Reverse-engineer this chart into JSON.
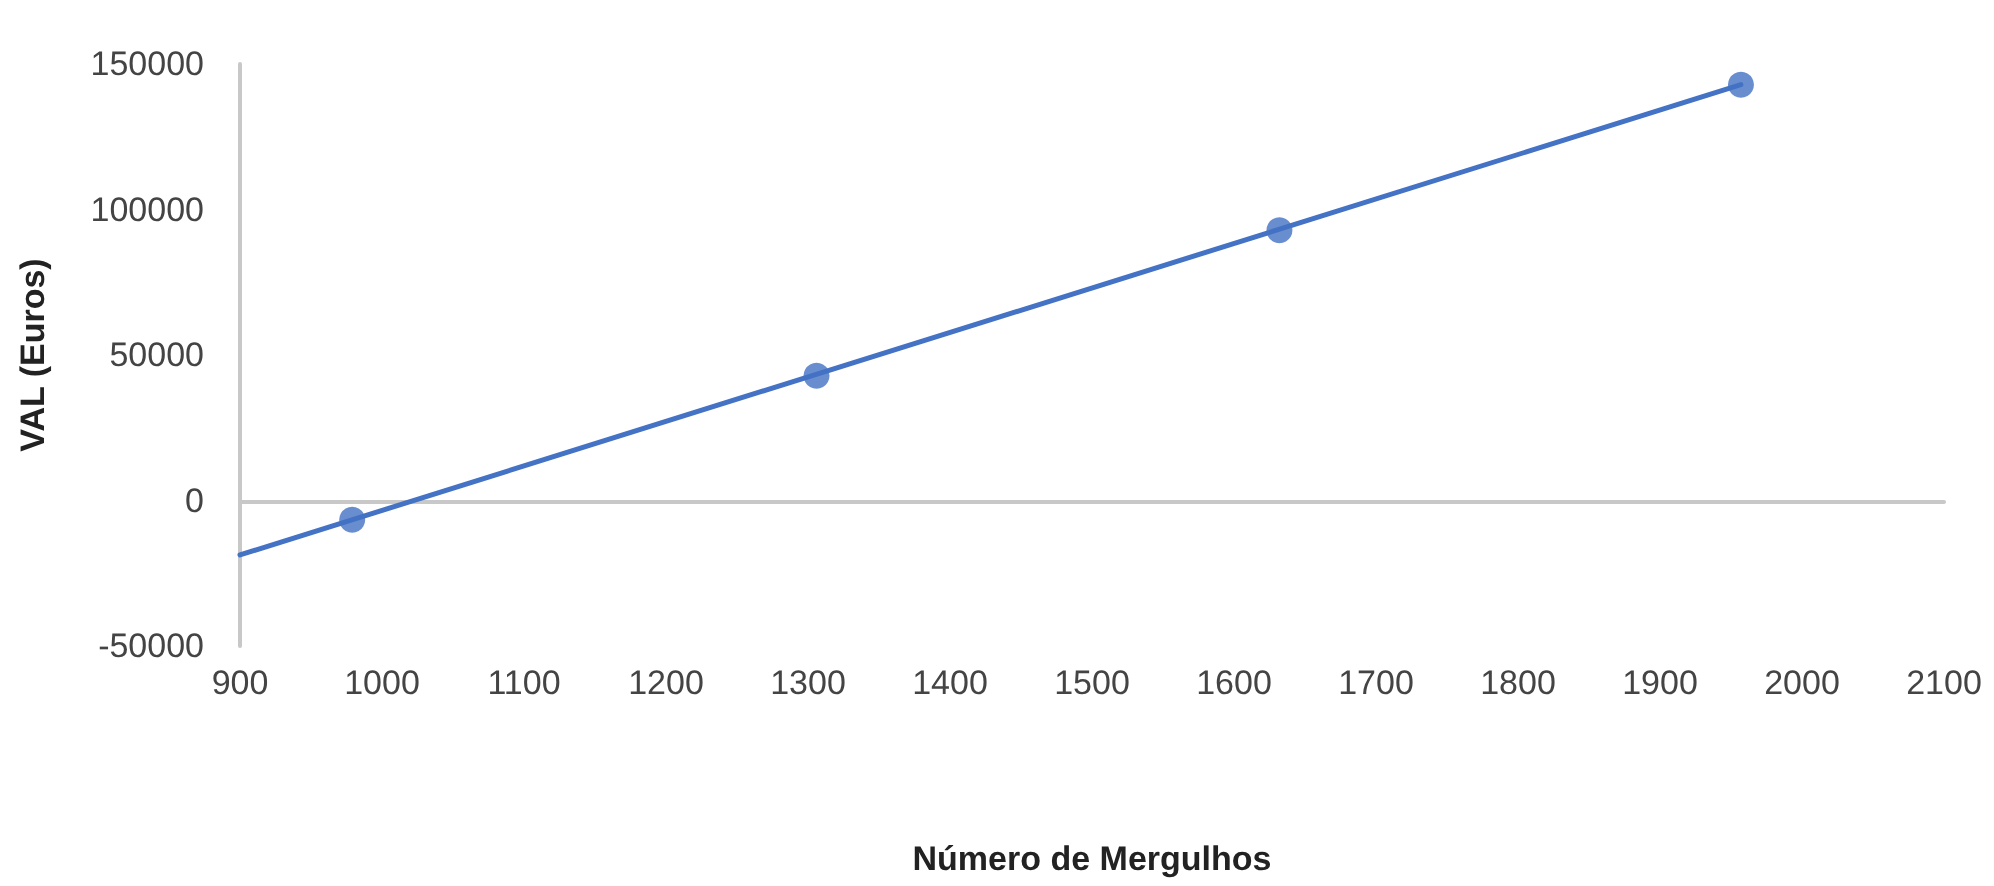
{
  "chart_data": {
    "type": "scatter",
    "xlabel": "Número de Mergulhos",
    "ylabel": "VAL (Euros)",
    "series": [
      {
        "color": "#4472c4",
        "x": [
          979,
          1306,
          1632,
          1957
        ],
        "values": [
          -6600,
          42900,
          92900,
          142900
        ],
        "marker": "circle"
      },
      {
        "type": "line",
        "color": "#4472c4",
        "x": [
          900,
          1957
        ],
        "values": [
          -18700,
          142900
        ],
        "marker": "none",
        "line_style": "solid"
      }
    ],
    "xlim": [
      900,
      2100
    ],
    "xticks": [
      900,
      1000,
      1100,
      1200,
      1300,
      1400,
      1500,
      1600,
      1700,
      1800,
      1900,
      2000,
      2100
    ],
    "ylim": [
      -50000,
      150000
    ],
    "yticks": [
      -50000,
      0,
      50000,
      100000,
      150000
    ]
  }
}
